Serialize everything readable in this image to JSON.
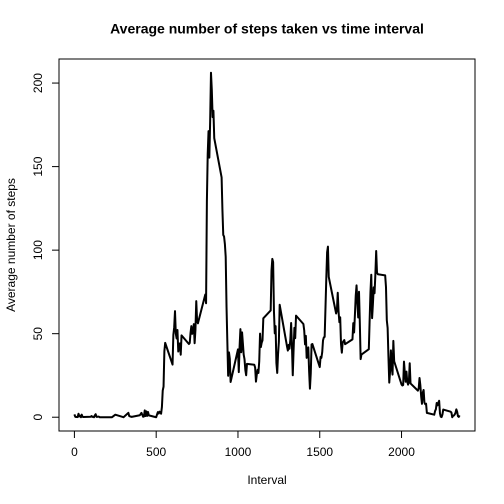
{
  "chart_data": {
    "type": "line",
    "title": "Average number of steps taken vs time interval",
    "xlabel": "Interval",
    "ylabel": "Average number of steps",
    "color": "#000000",
    "xlim": [
      -94.2,
      2449.2
    ],
    "ylim": [
      -8.25,
      214.4
    ],
    "xticks": [
      0,
      500,
      1000,
      1500,
      2000
    ],
    "yticks": [
      0,
      50,
      100,
      150,
      200
    ],
    "x": [
      0,
      5,
      10,
      15,
      20,
      25,
      30,
      35,
      40,
      45,
      50,
      55,
      100,
      105,
      110,
      115,
      120,
      125,
      130,
      135,
      140,
      145,
      150,
      155,
      200,
      230,
      250,
      300,
      330,
      335,
      340,
      350,
      400,
      410,
      420,
      425,
      430,
      435,
      440,
      445,
      450,
      455,
      500,
      505,
      510,
      515,
      520,
      525,
      530,
      535,
      540,
      545,
      550,
      555,
      600,
      605,
      610,
      615,
      620,
      625,
      630,
      635,
      640,
      645,
      650,
      655,
      700,
      705,
      710,
      715,
      720,
      725,
      730,
      735,
      740,
      745,
      750,
      755,
      800,
      805,
      810,
      815,
      820,
      825,
      830,
      835,
      840,
      845,
      850,
      855,
      900,
      905,
      910,
      915,
      920,
      925,
      930,
      935,
      940,
      945,
      950,
      955,
      1000,
      1005,
      1010,
      1015,
      1020,
      1025,
      1030,
      1035,
      1040,
      1045,
      1050,
      1055,
      1100,
      1105,
      1110,
      1115,
      1120,
      1125,
      1130,
      1135,
      1140,
      1145,
      1150,
      1155,
      1200,
      1205,
      1210,
      1215,
      1220,
      1225,
      1230,
      1235,
      1240,
      1245,
      1250,
      1255,
      1300,
      1305,
      1310,
      1315,
      1320,
      1325,
      1330,
      1335,
      1340,
      1345,
      1350,
      1355,
      1400,
      1405,
      1410,
      1415,
      1420,
      1425,
      1430,
      1435,
      1440,
      1445,
      1450,
      1455,
      1500,
      1505,
      1510,
      1515,
      1520,
      1525,
      1530,
      1535,
      1540,
      1545,
      1550,
      1555,
      1600,
      1605,
      1610,
      1615,
      1620,
      1625,
      1630,
      1635,
      1640,
      1645,
      1650,
      1655,
      1700,
      1705,
      1710,
      1715,
      1720,
      1725,
      1730,
      1735,
      1740,
      1745,
      1750,
      1755,
      1800,
      1805,
      1810,
      1815,
      1820,
      1825,
      1830,
      1835,
      1840,
      1845,
      1850,
      1855,
      1900,
      1905,
      1910,
      1915,
      1920,
      1925,
      1930,
      1935,
      1940,
      1945,
      1950,
      1955,
      2000,
      2005,
      2010,
      2015,
      2020,
      2025,
      2030,
      2035,
      2040,
      2045,
      2050,
      2055,
      2100,
      2105,
      2110,
      2115,
      2120,
      2125,
      2130,
      2135,
      2140,
      2145,
      2150,
      2155,
      2200,
      2205,
      2210,
      2215,
      2220,
      2225,
      2230,
      2235,
      2240,
      2245,
      2250,
      2255,
      2300,
      2305,
      2310,
      2315,
      2320,
      2325,
      2330,
      2335,
      2340,
      2345,
      2350,
      2355
    ],
    "values": [
      1.7,
      0.3,
      0.1,
      0.2,
      0.1,
      2.1,
      0.5,
      0.9,
      0,
      1.5,
      0.3,
      0.1,
      0.3,
      0.7,
      0.2,
      0.3,
      0,
      1.1,
      1.8,
      0.2,
      0.2,
      0.4,
      0.3,
      0,
      0,
      0,
      1.5,
      0,
      2.6,
      0.7,
      0.5,
      0.2,
      1.2,
      2.6,
      0.3,
      0.4,
      4.1,
      0.7,
      3.5,
      0.8,
      3.1,
      1.1,
      0,
      1.6,
      3.0,
      2.2,
      3.3,
      2.9,
      2.1,
      6.1,
      16,
      18.3,
      39.5,
      44.5,
      31.5,
      49.3,
      53.8,
      63.5,
      50,
      47.1,
      52.2,
      39.3,
      44,
      44.2,
      37.4,
      49,
      43.8,
      44.4,
      50.5,
      54.5,
      49.9,
      51,
      55.7,
      44.3,
      52.3,
      69.5,
      57.8,
      56.2,
      73.4,
      68.2,
      129.4,
      157.5,
      171.2,
      155.4,
      177.3,
      206.2,
      195.9,
      179.6,
      183.4,
      167,
      143.5,
      124,
      109.1,
      108.1,
      103.7,
      96,
      66.2,
      45.2,
      24.8,
      38.8,
      35,
      21.1,
      40.6,
      27,
      42.4,
      52.7,
      38.9,
      50.8,
      44.3,
      37.4,
      34.7,
      28.3,
      25.1,
      31.9,
      31.4,
      29.7,
      21.3,
      25.5,
      28.4,
      26.5,
      33.4,
      50,
      42,
      44.6,
      46,
      59.2,
      63.9,
      87.7,
      94.8,
      92.8,
      63.4,
      50.2,
      54.5,
      32.4,
      26.5,
      37.7,
      45.1,
      67.3,
      42.3,
      39.9,
      43.3,
      41,
      46.2,
      56.4,
      42.8,
      25.1,
      40,
      53.5,
      47.3,
      60.8,
      55.8,
      52,
      43.6,
      48.7,
      35.5,
      37.5,
      41.8,
      27.5,
      17.1,
      26.1,
      43.6,
      43.8,
      30,
      36.1,
      35.5,
      38.8,
      46,
      47.8,
      48.1,
      65.3,
      82.9,
      98.7,
      102.1,
      84,
      62.1,
      64.1,
      74.5,
      63.2,
      56.9,
      59.8,
      43.9,
      38.6,
      44.7,
      45.5,
      46.2,
      43.7,
      46.6,
      56.3,
      50.7,
      61.2,
      72.7,
      78.9,
      68.9,
      59.7,
      75.1,
      56.5,
      34.8,
      37.5,
      40.7,
      58,
      74.7,
      85.3,
      59.3,
      67.8,
      77.7,
      74.2,
      85.3,
      99.5,
      86.6,
      85.6,
      84.9,
      77.8,
      58,
      53.4,
      36.3,
      20.7,
      27.4,
      40,
      30.2,
      25.5,
      45.7,
      33.5,
      19.6,
      19,
      19.3,
      33.3,
      26.8,
      21.2,
      27.3,
      21.3,
      19.5,
      21.3,
      32.3,
      20.2,
      15.9,
      17.2,
      23.5,
      19.2,
      12.5,
      8,
      14.7,
      16.3,
      8.7,
      7.8,
      8.1,
      2.6,
      1.5,
      3.7,
      4.8,
      8.5,
      7.1,
      8.7,
      9.8,
      2.2,
      0.3,
      0.1,
      1.6,
      4.6,
      3.3,
      2.8,
      0,
      0.8,
      1,
      1.6,
      2.6,
      4.7,
      3.3,
      0.6,
      0.2,
      1.1
    ]
  }
}
